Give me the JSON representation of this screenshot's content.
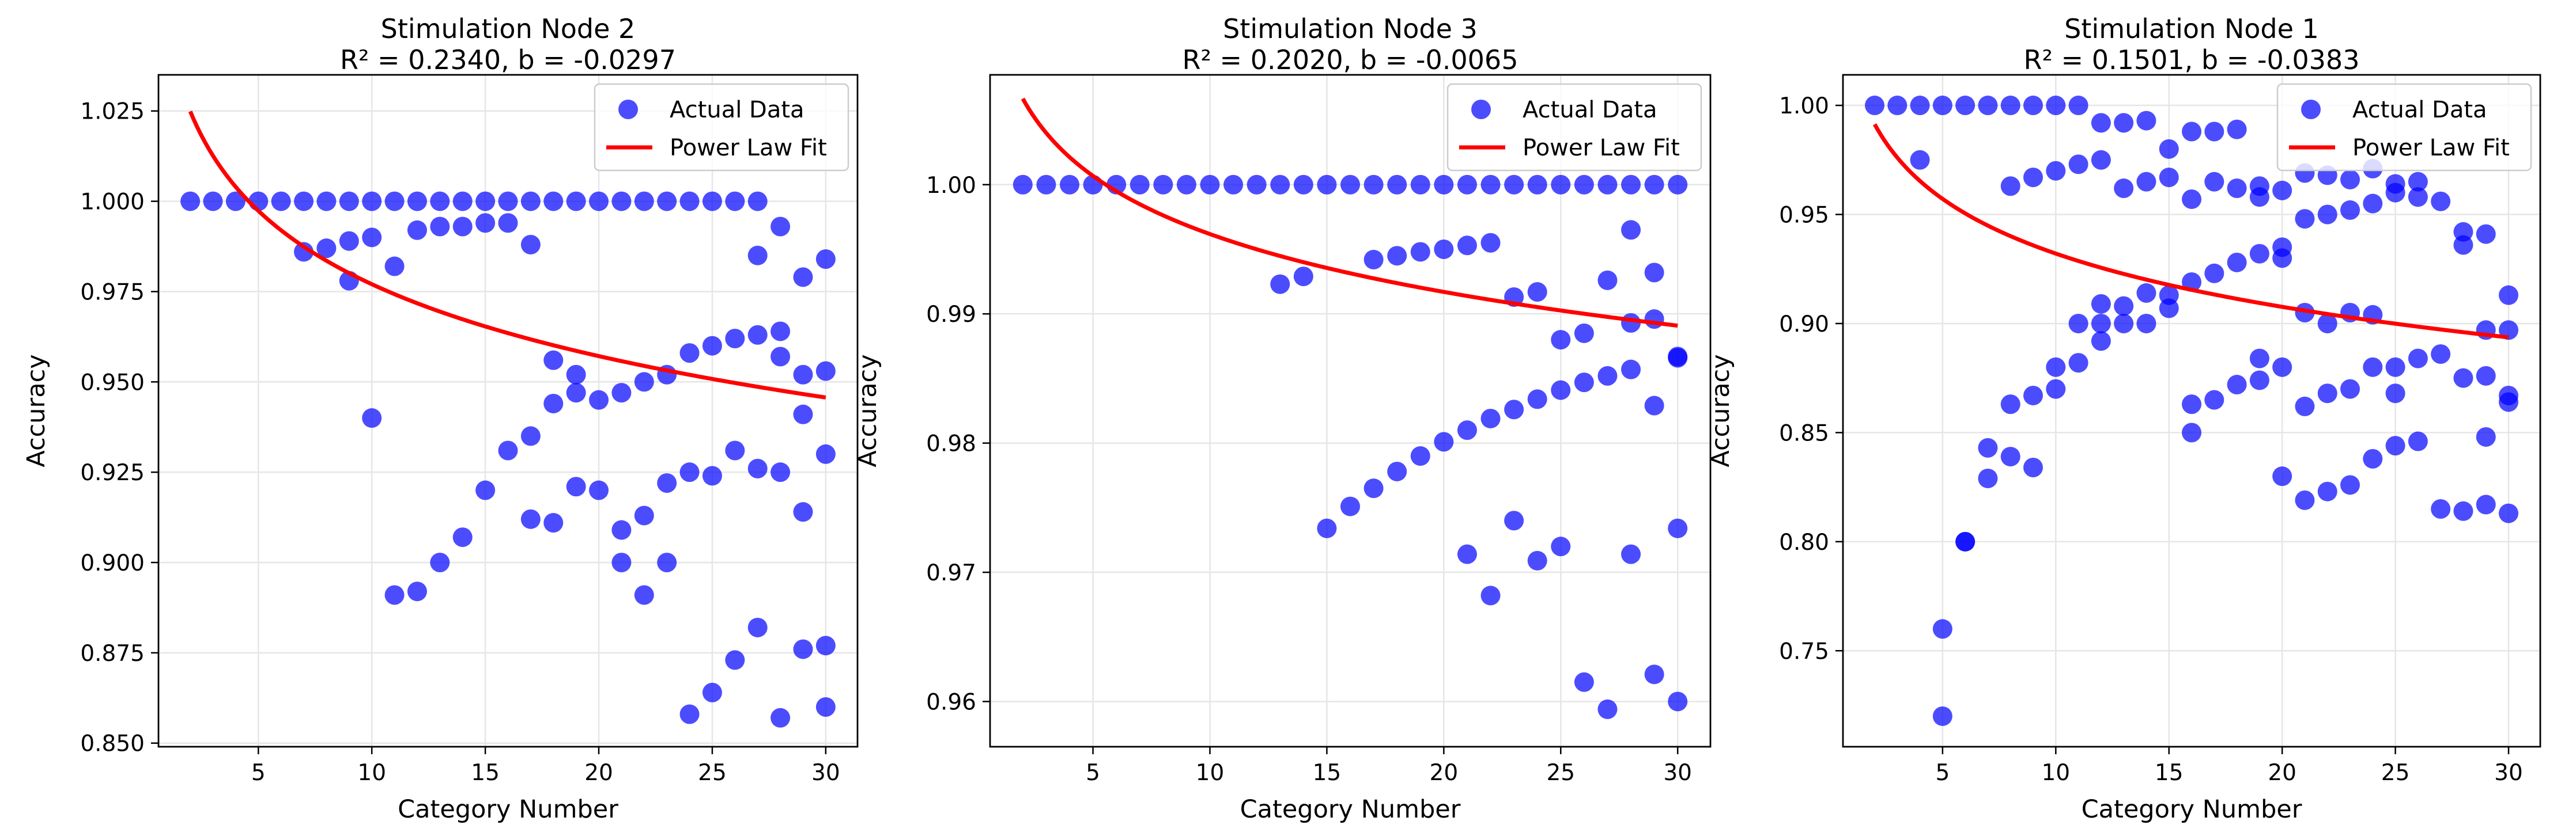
{
  "chart_data": [
    {
      "type": "scatter",
      "title_line1": "Stimulation Node 2",
      "title_line2": "R² = 0.2340, b = -0.0297",
      "xlabel": "Category Number",
      "ylabel": "Accuracy",
      "xlim": [
        0.6,
        31.4
      ],
      "ylim": [
        0.849,
        1.035
      ],
      "xticks": [
        5,
        10,
        15,
        20,
        25,
        30
      ],
      "xtick_labels": [
        "5",
        "10",
        "15",
        "20",
        "25",
        "30"
      ],
      "yticks": [
        0.85,
        0.875,
        0.9,
        0.925,
        0.95,
        0.975,
        1.0,
        1.025
      ],
      "ytick_labels": [
        "0.850",
        "0.875",
        "0.900",
        "0.925",
        "0.950",
        "0.975",
        "1.000",
        "1.025"
      ],
      "grid": true,
      "legend": {
        "position": "top-right",
        "scatter_label": "Actual Data",
        "fit_label": "Power Law Fit"
      },
      "colors": {
        "points": "#0000ff",
        "fit": "#ff0000"
      },
      "fit": {
        "a": 1.0462,
        "b": -0.0297,
        "x_range": [
          2,
          30
        ]
      },
      "points": [
        [
          2,
          1.0
        ],
        [
          3,
          1.0
        ],
        [
          4,
          1.0
        ],
        [
          5,
          1.0
        ],
        [
          6,
          1.0
        ],
        [
          7,
          1.0
        ],
        [
          8,
          1.0
        ],
        [
          9,
          1.0
        ],
        [
          10,
          1.0
        ],
        [
          11,
          1.0
        ],
        [
          12,
          1.0
        ],
        [
          13,
          1.0
        ],
        [
          14,
          1.0
        ],
        [
          15,
          1.0
        ],
        [
          16,
          1.0
        ],
        [
          17,
          1.0
        ],
        [
          18,
          1.0
        ],
        [
          19,
          1.0
        ],
        [
          20,
          1.0
        ],
        [
          21,
          1.0
        ],
        [
          22,
          1.0
        ],
        [
          23,
          1.0
        ],
        [
          24,
          1.0
        ],
        [
          25,
          1.0
        ],
        [
          26,
          1.0
        ],
        [
          27,
          1.0
        ],
        [
          7,
          0.986
        ],
        [
          8,
          0.987
        ],
        [
          9,
          0.989
        ],
        [
          10,
          0.99
        ],
        [
          11,
          0.982
        ],
        [
          12,
          0.992
        ],
        [
          13,
          0.993
        ],
        [
          14,
          0.993
        ],
        [
          15,
          0.994
        ],
        [
          16,
          0.994
        ],
        [
          17,
          0.988
        ],
        [
          9,
          0.978
        ],
        [
          10,
          0.94
        ],
        [
          11,
          0.891
        ],
        [
          12,
          0.892
        ],
        [
          13,
          0.9
        ],
        [
          14,
          0.907
        ],
        [
          15,
          0.92
        ],
        [
          16,
          0.931
        ],
        [
          17,
          0.935
        ],
        [
          18,
          0.944
        ],
        [
          19,
          0.947
        ],
        [
          20,
          0.945
        ],
        [
          21,
          0.947
        ],
        [
          22,
          0.95
        ],
        [
          23,
          0.952
        ],
        [
          24,
          0.958
        ],
        [
          25,
          0.96
        ],
        [
          26,
          0.962
        ],
        [
          27,
          0.963
        ],
        [
          28,
          0.964
        ],
        [
          29,
          0.952
        ],
        [
          30,
          0.953
        ],
        [
          17,
          0.912
        ],
        [
          18,
          0.911
        ],
        [
          18,
          0.956
        ],
        [
          19,
          0.921
        ],
        [
          19,
          0.952
        ],
        [
          20,
          0.92
        ],
        [
          21,
          0.909
        ],
        [
          21,
          0.9
        ],
        [
          22,
          0.891
        ],
        [
          22,
          0.913
        ],
        [
          23,
          0.9
        ],
        [
          23,
          0.922
        ],
        [
          24,
          0.925
        ],
        [
          24,
          0.858
        ],
        [
          25,
          0.924
        ],
        [
          25,
          0.864
        ],
        [
          26,
          0.931
        ],
        [
          26,
          0.873
        ],
        [
          27,
          0.985
        ],
        [
          27,
          0.926
        ],
        [
          27,
          0.882
        ],
        [
          28,
          0.993
        ],
        [
          28,
          0.957
        ],
        [
          28,
          0.925
        ],
        [
          28,
          0.857
        ],
        [
          29,
          0.979
        ],
        [
          29,
          0.941
        ],
        [
          29,
          0.914
        ],
        [
          29,
          0.876
        ],
        [
          30,
          0.984
        ],
        [
          30,
          0.93
        ],
        [
          30,
          0.877
        ],
        [
          30,
          0.86
        ]
      ]
    },
    {
      "type": "scatter",
      "title_line1": "Stimulation Node 3",
      "title_line2": "R² = 0.2020, b = -0.0065",
      "xlabel": "Category Number",
      "ylabel": "Accuracy",
      "xlim": [
        0.6,
        31.4
      ],
      "ylim": [
        0.9565,
        1.0085
      ],
      "xticks": [
        5,
        10,
        15,
        20,
        25,
        30
      ],
      "xtick_labels": [
        "5",
        "10",
        "15",
        "20",
        "25",
        "30"
      ],
      "yticks": [
        0.96,
        0.97,
        0.98,
        0.99,
        1.0
      ],
      "ytick_labels": [
        "0.96",
        "0.97",
        "0.98",
        "0.99",
        "1.00"
      ],
      "grid": true,
      "legend": {
        "position": "top-right",
        "scatter_label": "Actual Data",
        "fit_label": "Power Law Fit"
      },
      "colors": {
        "points": "#0000ff",
        "fit": "#ff0000"
      },
      "fit": {
        "a": 1.0112,
        "b": -0.0065,
        "x_range": [
          2,
          30
        ]
      },
      "points": [
        [
          2,
          1.0
        ],
        [
          3,
          1.0
        ],
        [
          4,
          1.0
        ],
        [
          5,
          1.0
        ],
        [
          6,
          1.0
        ],
        [
          7,
          1.0
        ],
        [
          8,
          1.0
        ],
        [
          9,
          1.0
        ],
        [
          10,
          1.0
        ],
        [
          11,
          1.0
        ],
        [
          12,
          1.0
        ],
        [
          13,
          1.0
        ],
        [
          14,
          1.0
        ],
        [
          15,
          1.0
        ],
        [
          16,
          1.0
        ],
        [
          17,
          1.0
        ],
        [
          18,
          1.0
        ],
        [
          19,
          1.0
        ],
        [
          20,
          1.0
        ],
        [
          21,
          1.0
        ],
        [
          22,
          1.0
        ],
        [
          23,
          1.0
        ],
        [
          24,
          1.0
        ],
        [
          25,
          1.0
        ],
        [
          26,
          1.0
        ],
        [
          27,
          1.0
        ],
        [
          28,
          1.0
        ],
        [
          29,
          1.0
        ],
        [
          30,
          1.0
        ],
        [
          13,
          0.9923
        ],
        [
          14,
          0.9929
        ],
        [
          17,
          0.9942
        ],
        [
          18,
          0.9945
        ],
        [
          19,
          0.9948
        ],
        [
          20,
          0.995
        ],
        [
          21,
          0.9953
        ],
        [
          22,
          0.9955
        ],
        [
          23,
          0.9913
        ],
        [
          24,
          0.9917
        ],
        [
          25,
          0.988
        ],
        [
          26,
          0.9885
        ],
        [
          27,
          0.9926
        ],
        [
          28,
          0.9965
        ],
        [
          28,
          0.9893
        ],
        [
          29,
          0.9932
        ],
        [
          29,
          0.9896
        ],
        [
          30,
          0.9867
        ],
        [
          15,
          0.9734
        ],
        [
          16,
          0.9751
        ],
        [
          17,
          0.9765
        ],
        [
          18,
          0.9778
        ],
        [
          19,
          0.979
        ],
        [
          20,
          0.9801
        ],
        [
          21,
          0.981
        ],
        [
          22,
          0.9819
        ],
        [
          23,
          0.9826
        ],
        [
          24,
          0.9834
        ],
        [
          25,
          0.9841
        ],
        [
          26,
          0.9847
        ],
        [
          27,
          0.9852
        ],
        [
          28,
          0.9857
        ],
        [
          29,
          0.9829
        ],
        [
          30,
          0.9866
        ],
        [
          21,
          0.9714
        ],
        [
          22,
          0.9682
        ],
        [
          23,
          0.974
        ],
        [
          24,
          0.9709
        ],
        [
          25,
          0.972
        ],
        [
          26,
          0.9615
        ],
        [
          27,
          0.9594
        ],
        [
          28,
          0.9714
        ],
        [
          29,
          0.9621
        ],
        [
          30,
          0.9734
        ],
        [
          30,
          0.96
        ]
      ]
    },
    {
      "type": "scatter",
      "title_line1": "Stimulation Node 1",
      "title_line2": "R² = 0.1501, b = -0.0383",
      "xlabel": "Category Number",
      "ylabel": "Accuracy",
      "xlim": [
        0.6,
        31.4
      ],
      "ylim": [
        0.706,
        1.014
      ],
      "xticks": [
        5,
        10,
        15,
        20,
        25,
        30
      ],
      "xtick_labels": [
        "5",
        "10",
        "15",
        "20",
        "25",
        "30"
      ],
      "yticks": [
        0.75,
        0.8,
        0.85,
        0.9,
        0.95,
        1.0
      ],
      "ytick_labels": [
        "0.75",
        "0.80",
        "0.85",
        "0.90",
        "0.95",
        "1.00"
      ],
      "grid": true,
      "legend": {
        "position": "top-right",
        "scatter_label": "Actual Data",
        "fit_label": "Power Law Fit"
      },
      "colors": {
        "points": "#0000ff",
        "fit": "#ff0000"
      },
      "fit": {
        "a": 1.018,
        "b": -0.0383,
        "x_range": [
          2,
          30
        ]
      },
      "points": [
        [
          2,
          1.0
        ],
        [
          3,
          1.0
        ],
        [
          4,
          1.0
        ],
        [
          5,
          1.0
        ],
        [
          6,
          1.0
        ],
        [
          7,
          1.0
        ],
        [
          8,
          1.0
        ],
        [
          9,
          1.0
        ],
        [
          10,
          1.0
        ],
        [
          11,
          1.0
        ],
        [
          4,
          0.975
        ],
        [
          5,
          0.76
        ],
        [
          5,
          0.72
        ],
        [
          6,
          0.8
        ],
        [
          6,
          0.8
        ],
        [
          7,
          0.843
        ],
        [
          7,
          0.829
        ],
        [
          8,
          0.963
        ],
        [
          8,
          0.863
        ],
        [
          8,
          0.839
        ],
        [
          9,
          0.967
        ],
        [
          9,
          0.867
        ],
        [
          9,
          0.834
        ],
        [
          10,
          0.97
        ],
        [
          10,
          0.88
        ],
        [
          10,
          0.87
        ],
        [
          11,
          0.973
        ],
        [
          11,
          0.9
        ],
        [
          11,
          0.882
        ],
        [
          12,
          0.992
        ],
        [
          12,
          0.975
        ],
        [
          12,
          0.909
        ],
        [
          12,
          0.9
        ],
        [
          12,
          0.892
        ],
        [
          13,
          0.992
        ],
        [
          13,
          0.962
        ],
        [
          13,
          0.908
        ],
        [
          13,
          0.9
        ],
        [
          14,
          0.993
        ],
        [
          14,
          0.965
        ],
        [
          14,
          0.914
        ],
        [
          14,
          0.9
        ],
        [
          15,
          0.98
        ],
        [
          15,
          0.967
        ],
        [
          15,
          0.913
        ],
        [
          15,
          0.907
        ],
        [
          16,
          0.988
        ],
        [
          16,
          0.957
        ],
        [
          16,
          0.919
        ],
        [
          16,
          0.863
        ],
        [
          16,
          0.85
        ],
        [
          17,
          0.988
        ],
        [
          17,
          0.965
        ],
        [
          17,
          0.923
        ],
        [
          17,
          0.865
        ],
        [
          18,
          0.989
        ],
        [
          18,
          0.962
        ],
        [
          18,
          0.928
        ],
        [
          18,
          0.872
        ],
        [
          19,
          0.963
        ],
        [
          19,
          0.958
        ],
        [
          19,
          0.932
        ],
        [
          19,
          0.884
        ],
        [
          19,
          0.874
        ],
        [
          20,
          0.961
        ],
        [
          20,
          0.935
        ],
        [
          20,
          0.93
        ],
        [
          20,
          0.88
        ],
        [
          20,
          0.83
        ],
        [
          21,
          0.969
        ],
        [
          21,
          0.948
        ],
        [
          21,
          0.905
        ],
        [
          21,
          0.862
        ],
        [
          21,
          0.819
        ],
        [
          22,
          0.968
        ],
        [
          22,
          0.95
        ],
        [
          22,
          0.9
        ],
        [
          22,
          0.868
        ],
        [
          22,
          0.823
        ],
        [
          23,
          0.966
        ],
        [
          23,
          0.952
        ],
        [
          23,
          0.905
        ],
        [
          23,
          0.87
        ],
        [
          23,
          0.826
        ],
        [
          24,
          0.971
        ],
        [
          24,
          0.955
        ],
        [
          24,
          0.904
        ],
        [
          24,
          0.88
        ],
        [
          24,
          0.838
        ],
        [
          25,
          0.964
        ],
        [
          25,
          0.96
        ],
        [
          25,
          0.88
        ],
        [
          25,
          0.868
        ],
        [
          25,
          0.844
        ],
        [
          26,
          0.965
        ],
        [
          26,
          0.958
        ],
        [
          26,
          0.884
        ],
        [
          26,
          0.846
        ],
        [
          27,
          0.956
        ],
        [
          27,
          0.886
        ],
        [
          27,
          0.815
        ],
        [
          28,
          0.942
        ],
        [
          28,
          0.936
        ],
        [
          28,
          0.875
        ],
        [
          28,
          0.814
        ],
        [
          29,
          0.941
        ],
        [
          29,
          0.897
        ],
        [
          29,
          0.876
        ],
        [
          29,
          0.848
        ],
        [
          29,
          0.817
        ],
        [
          30,
          0.913
        ],
        [
          30,
          0.897
        ],
        [
          30,
          0.867
        ],
        [
          30,
          0.864
        ],
        [
          30,
          0.813
        ]
      ]
    }
  ]
}
